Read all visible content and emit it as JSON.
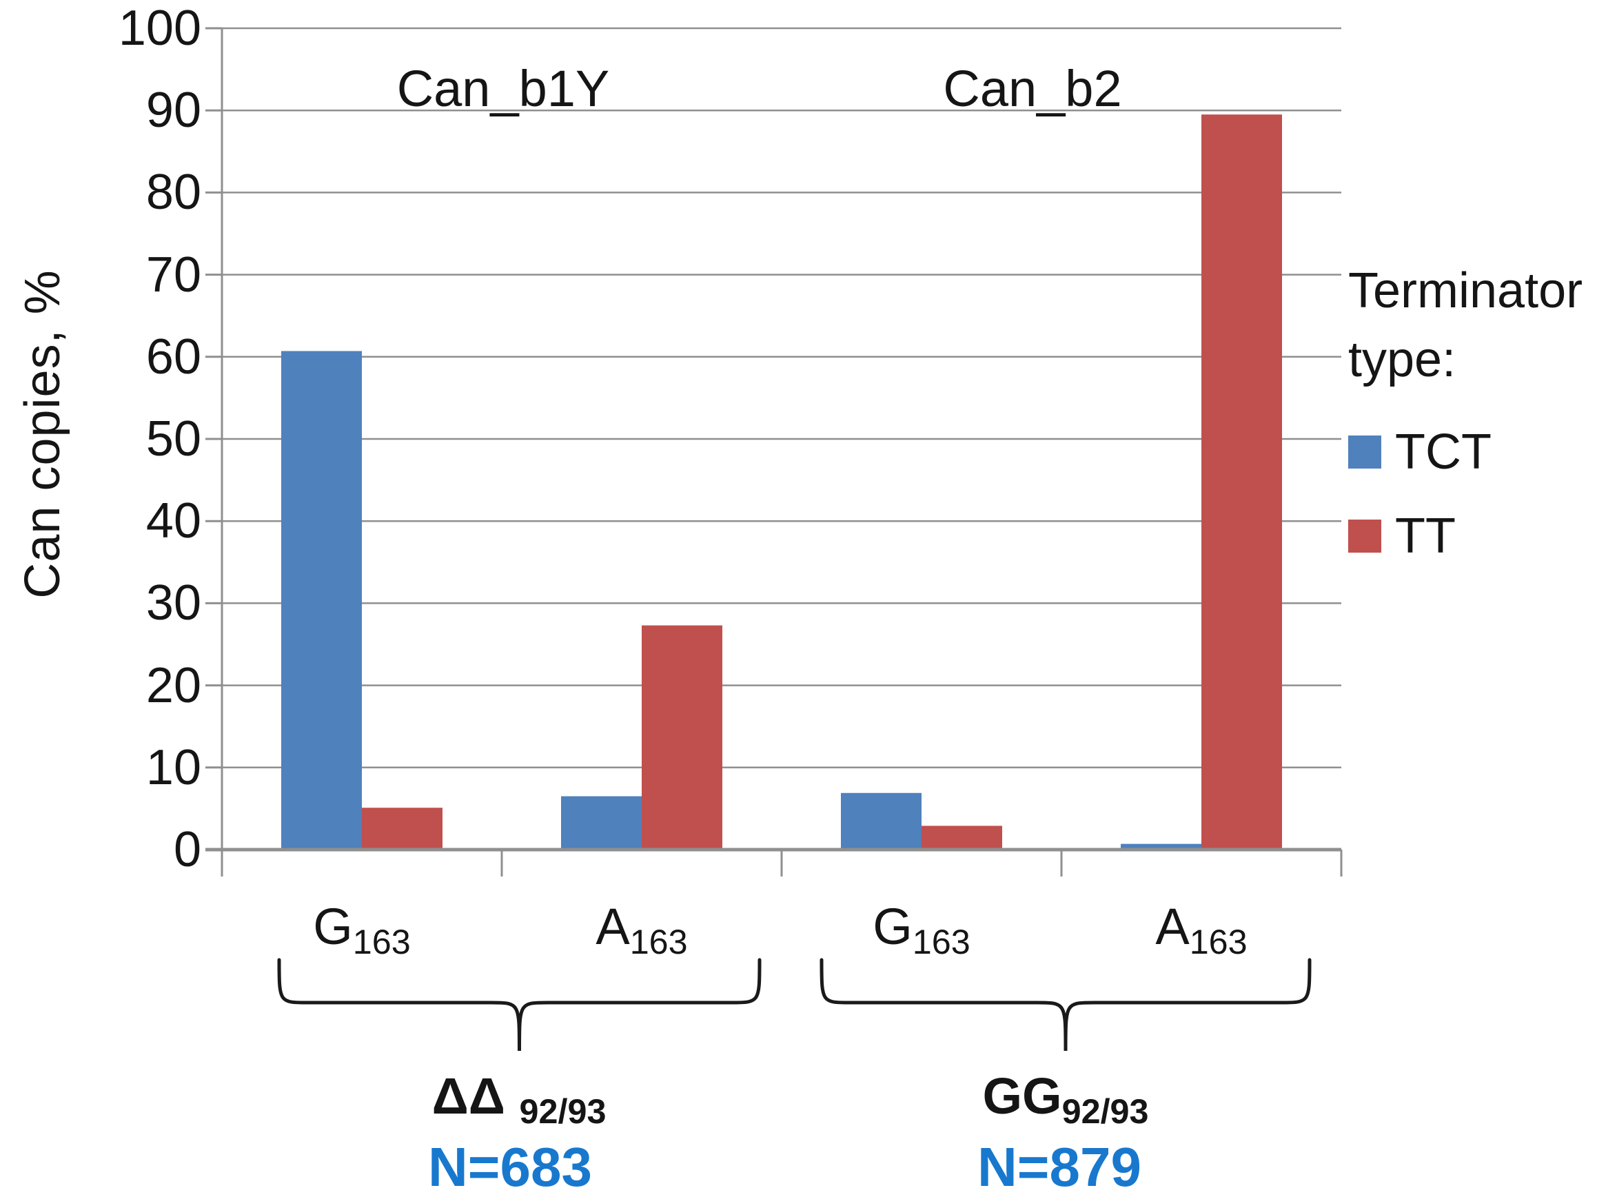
{
  "chart_data": {
    "type": "bar",
    "ylabel": "Can copies, %",
    "ylim": [
      0,
      100
    ],
    "ytick_step": 10,
    "yticks": [
      0,
      10,
      20,
      30,
      40,
      50,
      60,
      70,
      80,
      90,
      100
    ],
    "grid": "horizontal",
    "section_titles": [
      "Can_b1Y",
      "Can_b2"
    ],
    "categories": [
      {
        "base": "G",
        "sub": "163",
        "section": 0
      },
      {
        "base": "A",
        "sub": "163",
        "section": 0
      },
      {
        "base": "G",
        "sub": "163",
        "section": 1
      },
      {
        "base": "A",
        "sub": "163",
        "section": 1
      }
    ],
    "series": [
      {
        "name": "TCT",
        "color": "#4F81BD",
        "values": [
          60.7,
          6.5,
          6.9,
          0.7
        ]
      },
      {
        "name": "TT",
        "color": "#C0504D",
        "values": [
          5.1,
          27.3,
          2.9,
          89.5
        ]
      }
    ],
    "group_brackets": [
      {
        "base": "ΔΔ ",
        "sub": "92/93",
        "n_label": "N=683",
        "categories": [
          0,
          1
        ]
      },
      {
        "base": "GG",
        "sub": "92/93",
        "n_label": "N=879",
        "categories": [
          2,
          3
        ]
      }
    ],
    "legend": {
      "position": "right",
      "title_lines": [
        "Terminator",
        "type:"
      ],
      "entries": [
        {
          "label": "TCT",
          "color": "#4F81BD"
        },
        {
          "label": "TT",
          "color": "#C0504D"
        }
      ]
    }
  },
  "colors": {
    "bar_blue": "#4F81BD",
    "bar_red": "#C0504D",
    "n_label_blue": "#1878CE",
    "gridline_gray": "#8F8F8F",
    "text_black": "#151515",
    "background": "#FFFFFF"
  }
}
